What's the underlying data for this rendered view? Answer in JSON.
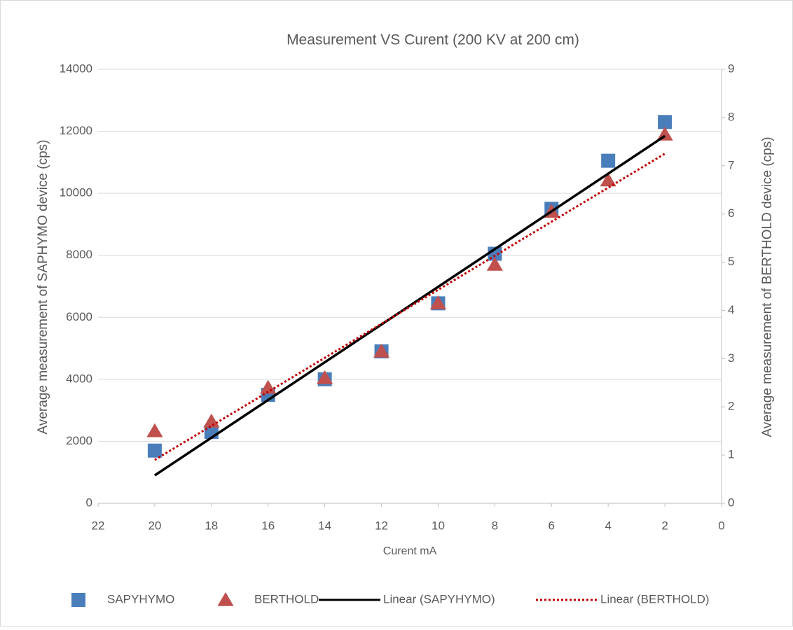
{
  "chart_data": {
    "type": "scatter",
    "title": "Measurement VS Curent (200 KV at 200 cm)",
    "xlabel": "Curent mA",
    "ylabel": "Average measurement of SAPHYMO device (cps)",
    "y2label": "Average measurement of BERTHOLD device (cps)",
    "xlim": [
      22,
      0
    ],
    "xticks": [
      22,
      20,
      18,
      16,
      14,
      12,
      10,
      8,
      6,
      4,
      2,
      0
    ],
    "ylim": [
      0,
      14000
    ],
    "yticks": [
      0,
      2000,
      4000,
      6000,
      8000,
      10000,
      12000,
      14000
    ],
    "y2lim": [
      0,
      9
    ],
    "y2ticks": [
      0,
      1,
      2,
      3,
      4,
      5,
      6,
      7,
      8,
      9
    ],
    "grid": true,
    "legend": "bottom",
    "series": [
      {
        "name": "SAPYHYMO",
        "color": "#4a7ebb",
        "marker": "square",
        "axis": "y",
        "x": [
          20,
          18,
          16,
          14,
          12,
          10,
          8,
          6,
          4,
          2
        ],
        "values": [
          1700,
          2300,
          3500,
          4000,
          4900,
          6450,
          8050,
          9500,
          11050,
          12300
        ]
      },
      {
        "name": "BERTHOLD",
        "color": "#c0504d",
        "marker": "triangle",
        "axis": "y2",
        "x": [
          20,
          18,
          16,
          14,
          12,
          10,
          8,
          6,
          4,
          2
        ],
        "values": [
          1.5,
          1.7,
          2.4,
          2.6,
          3.15,
          4.15,
          4.95,
          6.05,
          6.7,
          7.65
        ]
      },
      {
        "name": "Linear (SAPYHYMO)",
        "color": "#000000",
        "marker": "line",
        "dash": false,
        "axis": "y",
        "x": [
          20,
          2
        ],
        "values": [
          900,
          11850
        ]
      },
      {
        "name": "Linear (BERTHOLD)",
        "color": "#c00000",
        "marker": "line",
        "dash": true,
        "axis": "y2",
        "x": [
          20,
          2
        ],
        "values": [
          0.9,
          7.25
        ]
      }
    ]
  }
}
